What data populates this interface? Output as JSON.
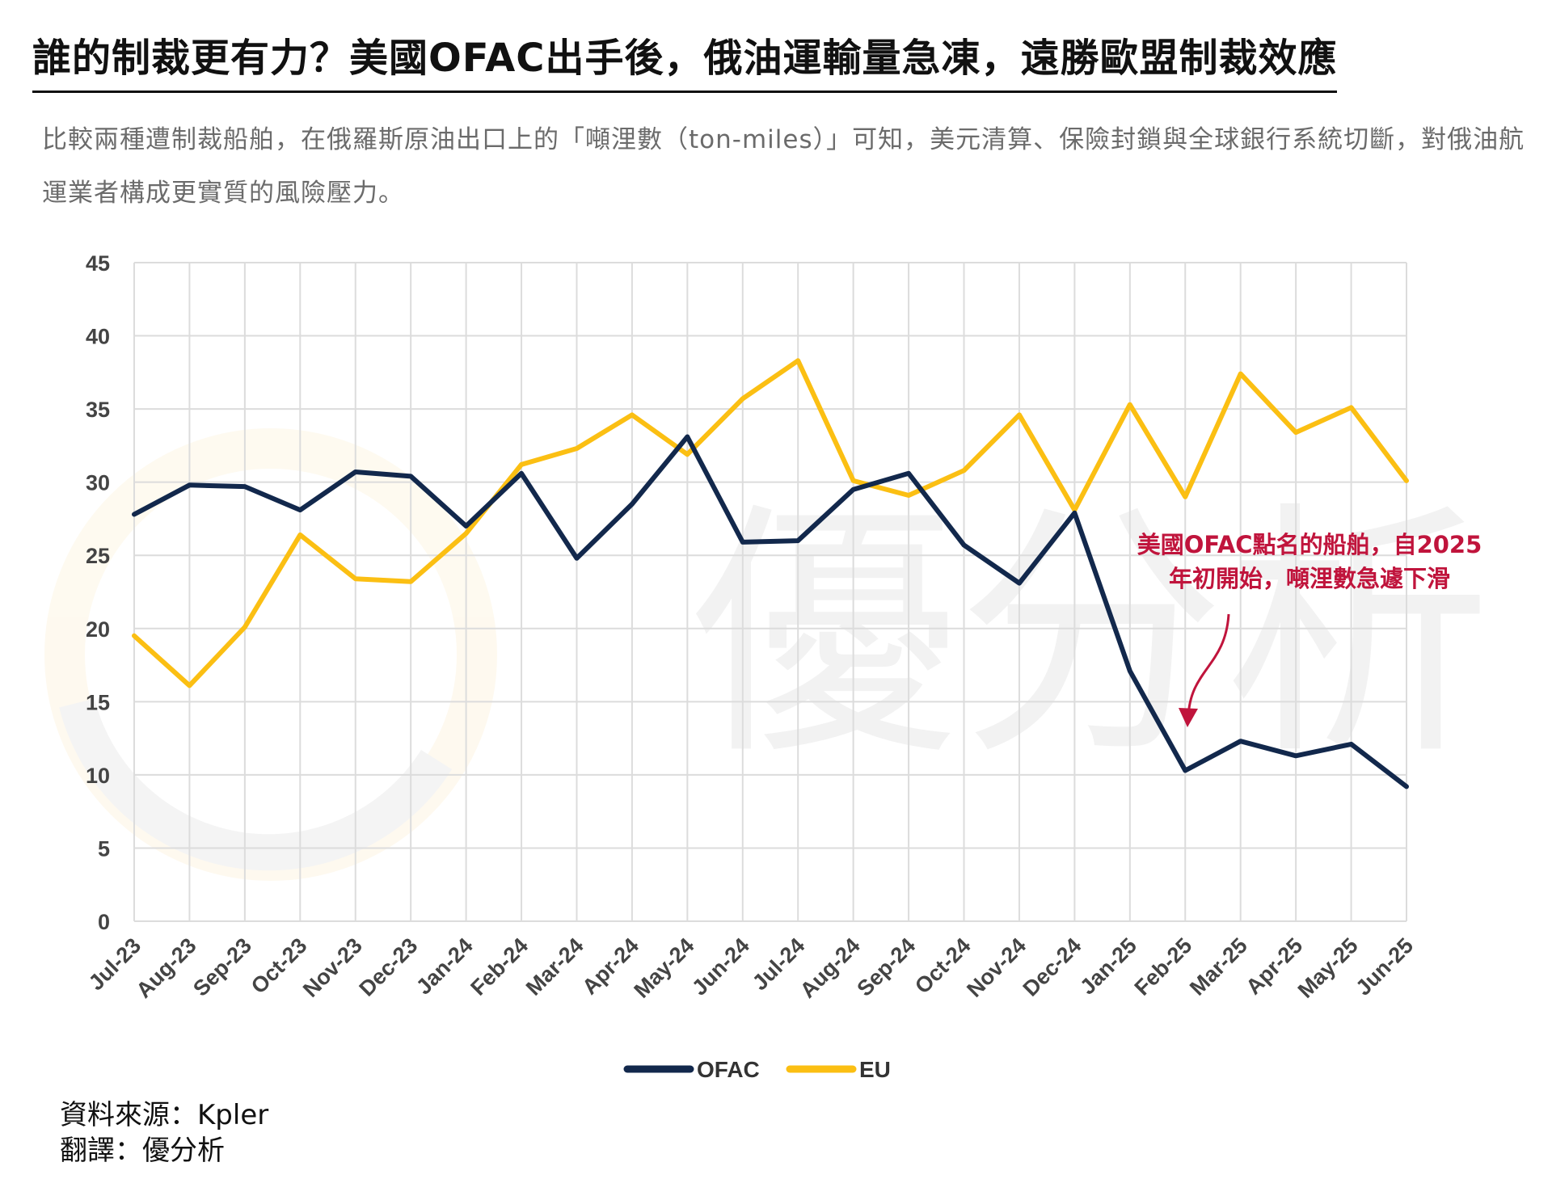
{
  "header": {
    "title": "誰的制裁更有力？美國OFAC出手後，俄油運輸量急凍，遠勝歐盟制裁效應",
    "subtitle": "比較兩種遭制裁船舶，在俄羅斯原油出口上的「噸浬數（ton-miles）」可知，美元清算、保險封鎖與全球銀行系統切斷，對俄油航運業者構成更實質的風險壓力。"
  },
  "chart_data": {
    "type": "line",
    "categories": [
      "Jul-23",
      "Aug-23",
      "Sep-23",
      "Oct-23",
      "Nov-23",
      "Dec-23",
      "Jan-24",
      "Feb-24",
      "Mar-24",
      "Apr-24",
      "May-24",
      "Jun-24",
      "Jul-24",
      "Aug-24",
      "Sep-24",
      "Oct-24",
      "Nov-24",
      "Dec-24",
      "Jan-25",
      "Feb-25",
      "Mar-25",
      "Apr-25",
      "May-25",
      "Jun-25"
    ],
    "series": [
      {
        "name": "OFAC",
        "color": "#12284c",
        "values": [
          27.8,
          29.8,
          29.7,
          28.1,
          30.7,
          30.4,
          27.0,
          30.6,
          24.8,
          28.5,
          33.1,
          25.9,
          26.0,
          29.5,
          30.6,
          25.7,
          23.1,
          27.9,
          17.1,
          10.3,
          12.3,
          11.3,
          12.1,
          9.2
        ]
      },
      {
        "name": "EU",
        "color": "#fbbf13",
        "values": [
          19.5,
          16.1,
          20.1,
          26.4,
          23.4,
          23.2,
          26.5,
          31.2,
          32.3,
          34.6,
          31.9,
          35.7,
          38.3,
          30.1,
          29.1,
          30.8,
          34.6,
          28.1,
          35.3,
          29.0,
          37.4,
          33.4,
          35.1,
          30.1
        ]
      }
    ],
    "ylim": [
      0,
      45
    ],
    "yticks": [
      0,
      5,
      10,
      15,
      20,
      25,
      30,
      35,
      40,
      45
    ],
    "grid": true,
    "legend_position": "bottom-center",
    "annotation": {
      "lines": [
        "美國OFAC點名的船舶，自2025",
        "年初開始，噸浬數急遽下滑"
      ],
      "color": "#c0143c"
    }
  },
  "watermark": "優分析",
  "footer": {
    "source": "資料來源：Kpler",
    "translation": "翻譯：優分析"
  }
}
